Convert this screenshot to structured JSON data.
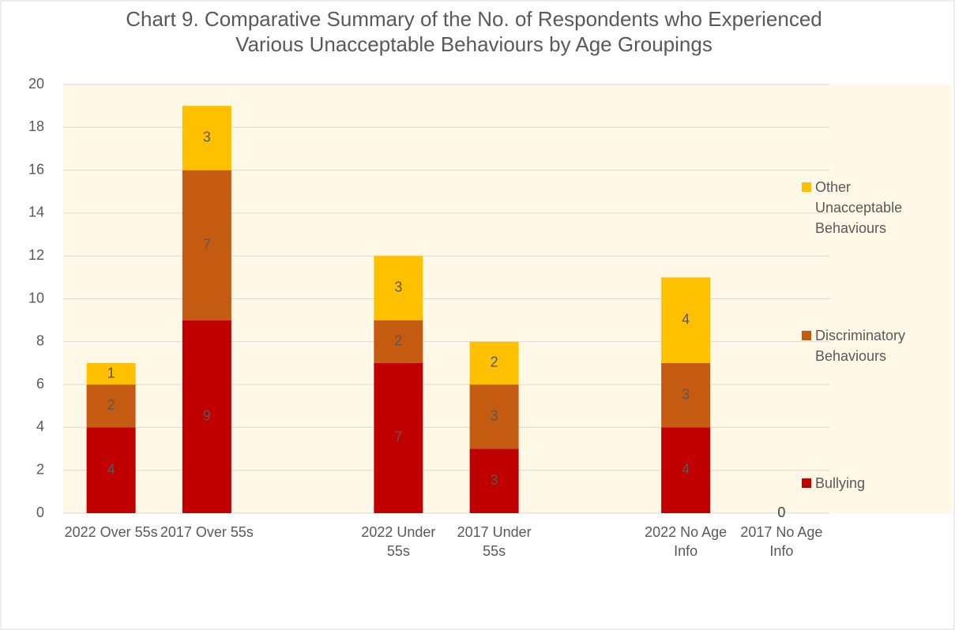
{
  "chart_data": {
    "type": "bar",
    "stacked": true,
    "title": "Chart 9. Comparative Summary of the No. of Respondents who Experienced Various Unacceptable Behaviours by Age Groupings",
    "categories": [
      "2022 Over 55s",
      "2017 Over 55s",
      null,
      "2022 Under 55s",
      "2017 Under 55s",
      null,
      "2022 No Age Info",
      "2017 No Age Info"
    ],
    "series": [
      {
        "name": "Bullying",
        "color": "#c00000",
        "values": [
          4,
          9,
          null,
          7,
          3,
          null,
          4,
          0
        ]
      },
      {
        "name": "Discriminatory Behaviours",
        "color": "#c55a11",
        "values": [
          2,
          7,
          null,
          2,
          3,
          null,
          3,
          0
        ]
      },
      {
        "name": "Other Unacceptable Behaviours",
        "color": "#ffc000",
        "values": [
          1,
          3,
          null,
          3,
          2,
          null,
          4,
          0
        ]
      }
    ],
    "ylim": [
      0,
      20
    ],
    "yticks": [
      0,
      2,
      4,
      6,
      8,
      10,
      12,
      14,
      16,
      18,
      20
    ],
    "grid": true,
    "legend": "right"
  }
}
